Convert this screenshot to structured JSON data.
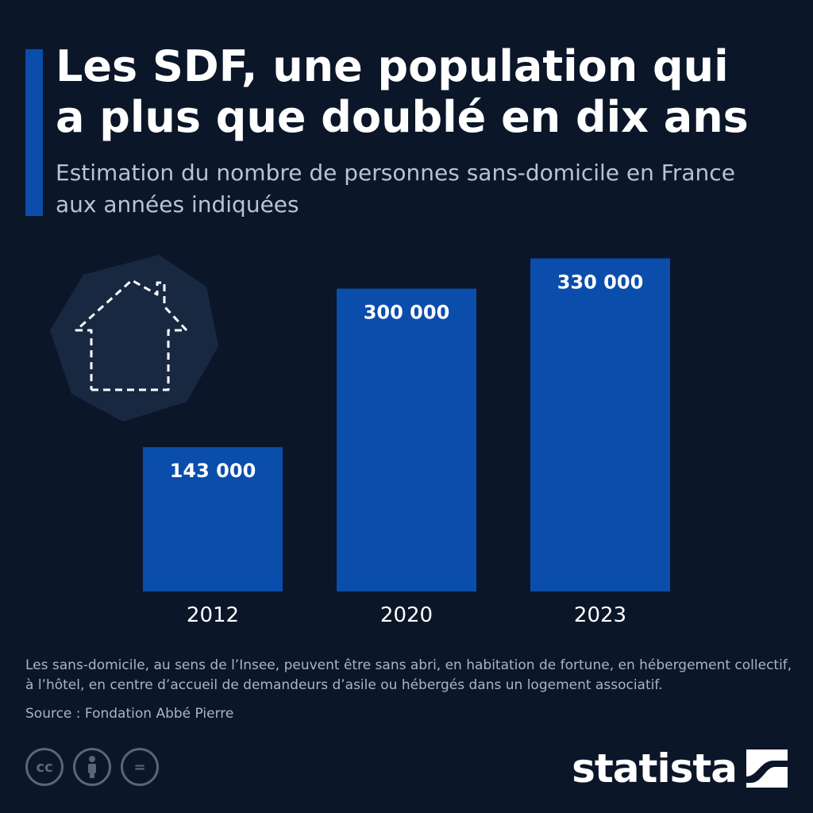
{
  "header": {
    "title": "Les SDF, une population qui a plus que doublé en dix ans",
    "subtitle": "Estimation du nombre de personnes sans-domicile en France aux années indiquées"
  },
  "chart_data": {
    "type": "bar",
    "categories": [
      "2012",
      "2020",
      "2023"
    ],
    "values": [
      143000,
      300000,
      330000
    ],
    "value_labels": [
      "143 000",
      "300 000",
      "330 000"
    ],
    "ylim": [
      0,
      350000
    ],
    "grid": false,
    "bar_color": "#0a4dab"
  },
  "footer": {
    "note": "Les sans-domicile, au sens de l’Insee, peuvent être sans abri, en habitation de fortune, en hébergement collectif, à l’hôtel, en centre d’accueil de demandeurs d’asile ou hébergés dans un logement associatif.",
    "source": "Source : Fondation Abbé Pierre",
    "license_icons": [
      "creative-commons-icon",
      "attribution-icon",
      "no-derivatives-icon"
    ],
    "license_cc_text": "cc",
    "license_nd_text": "="
  },
  "brand": {
    "name": "statista"
  },
  "colors": {
    "background": "#0b1629",
    "accent": "#0a4dab",
    "text_secondary": "#aab4c4"
  }
}
